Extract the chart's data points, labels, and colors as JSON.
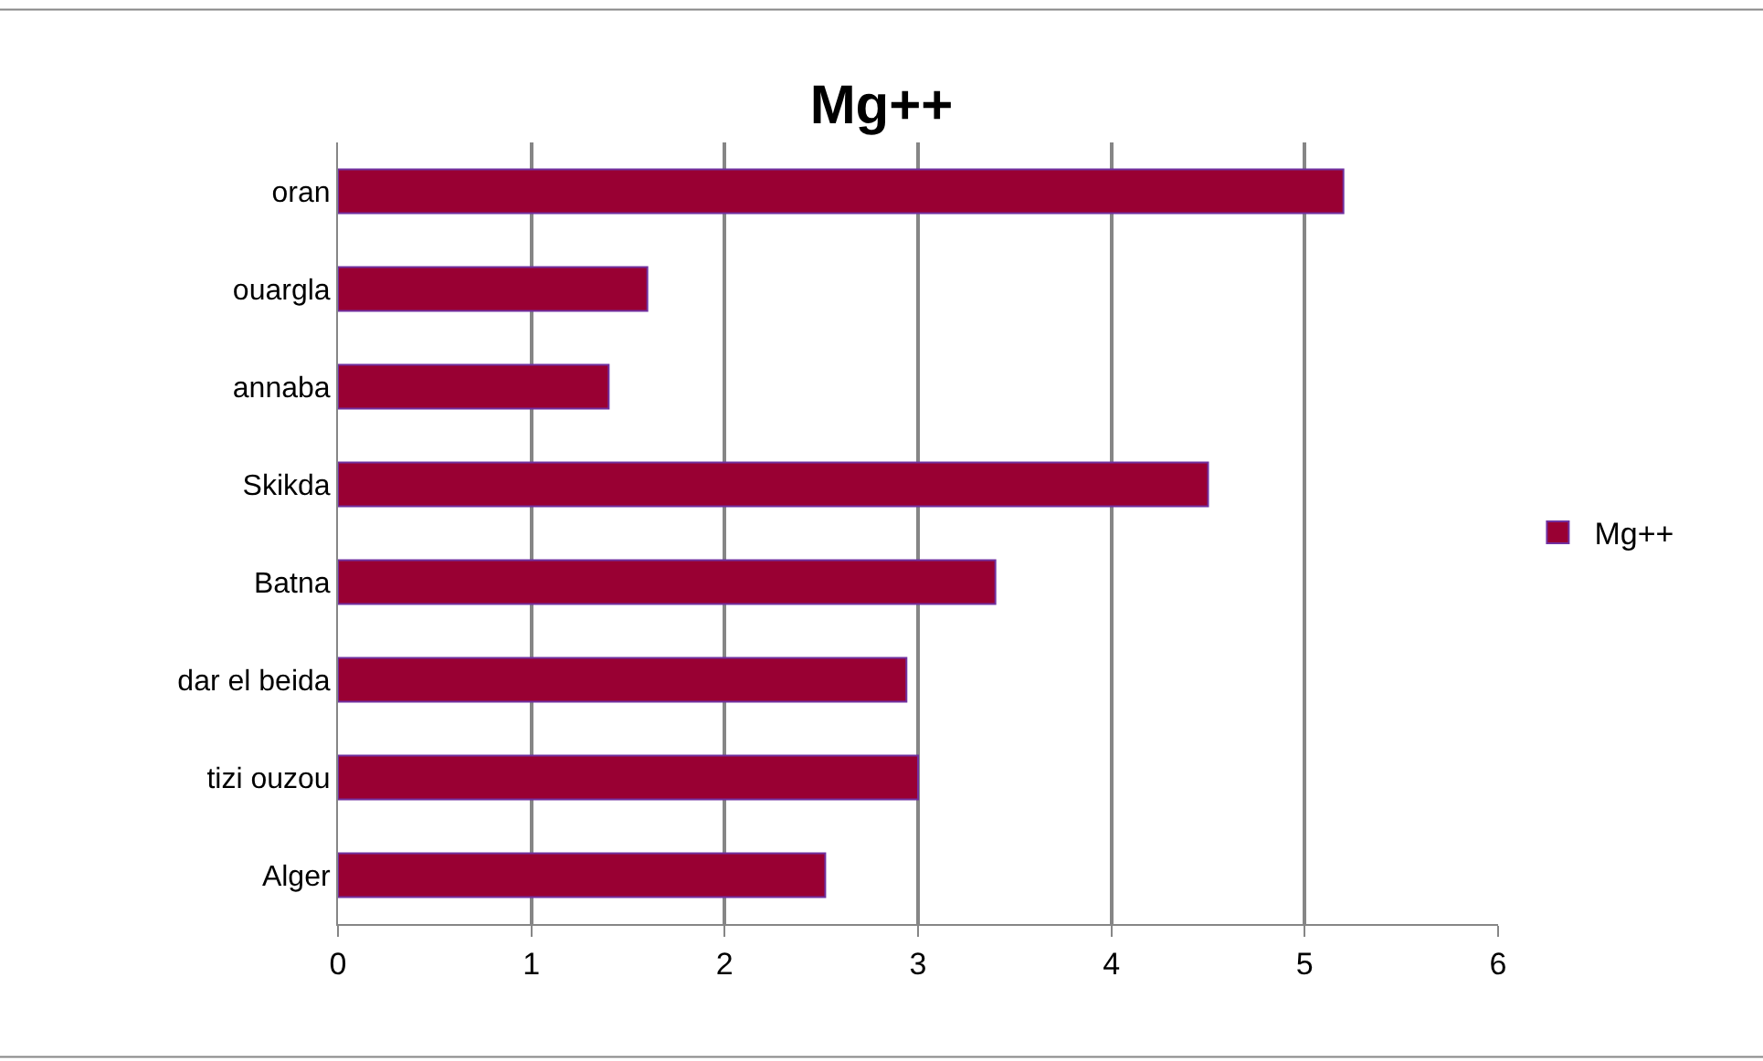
{
  "chart_data": {
    "type": "bar",
    "title": "Mg++",
    "orientation": "horizontal",
    "categories": [
      "oran",
      "ouargla",
      "annaba",
      "Skikda",
      "Batna",
      "dar el beida",
      "tizi ouzou",
      "Alger"
    ],
    "series": [
      {
        "name": "Mg++",
        "color": "#990033",
        "values": [
          5.2,
          1.6,
          1.4,
          4.5,
          3.4,
          2.94,
          3.0,
          2.52
        ]
      }
    ],
    "xlim": [
      0,
      6
    ],
    "xticks": [
      0,
      1,
      2,
      3,
      4,
      5,
      6
    ],
    "grid": "x",
    "legend": "right"
  }
}
